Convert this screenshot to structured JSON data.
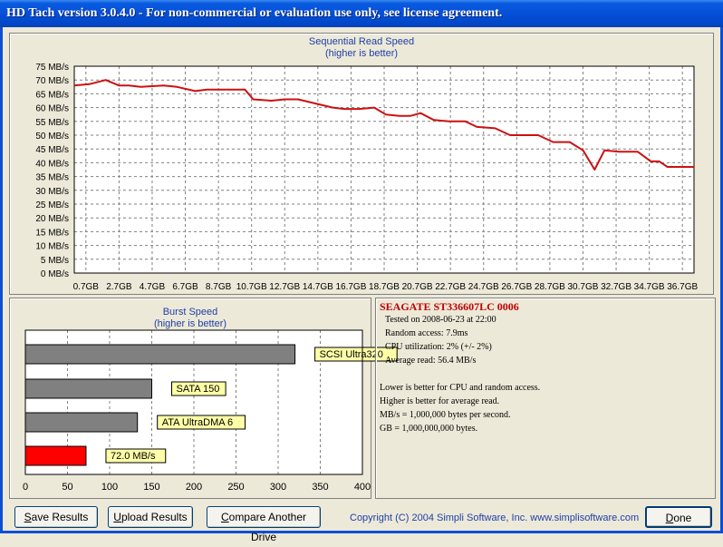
{
  "window": {
    "title": "HD Tach version 3.0.4.0  - For non-commercial or evaluation use only, see license agreement."
  },
  "sequential": {
    "title": "Sequential Read Speed",
    "subtitle": "(higher is better)"
  },
  "burst": {
    "title": "Burst Speed",
    "subtitle": "(higher is better)"
  },
  "chart_data": [
    {
      "type": "line",
      "title": "Sequential Read Speed",
      "subtitle": "(higher is better)",
      "ylim": [
        0,
        75
      ],
      "yticks": [
        0,
        5,
        10,
        15,
        20,
        25,
        30,
        35,
        40,
        45,
        50,
        55,
        60,
        65,
        70,
        75
      ],
      "ytick_labels": [
        "0 MB/s",
        "5 MB/s",
        "10 MB/s",
        "15 MB/s",
        "20 MB/s",
        "25 MB/s",
        "30 MB/s",
        "35 MB/s",
        "40 MB/s",
        "45 MB/s",
        "50 MB/s",
        "55 MB/s",
        "60 MB/s",
        "65 MB/s",
        "70 MB/s",
        "75 MB/s"
      ],
      "xlim": [
        0,
        37.4
      ],
      "xticks": [
        0.7,
        2.7,
        4.7,
        6.7,
        8.7,
        10.7,
        12.7,
        14.7,
        16.7,
        18.7,
        20.7,
        22.7,
        24.7,
        26.7,
        28.7,
        30.7,
        32.7,
        34.7,
        36.7
      ],
      "xtick_labels": [
        "0.7GB",
        "2.7GB",
        "4.7GB",
        "6.7GB",
        "8.7GB",
        "10.7GB",
        "12.7GB",
        "14.7GB",
        "16.7GB",
        "18.7GB",
        "20.7GB",
        "22.7GB",
        "24.7GB",
        "26.7GB",
        "28.7GB",
        "30.7GB",
        "32.7GB",
        "34.7GB",
        "36.7GB"
      ],
      "grid": true,
      "series": [
        {
          "color": "#CC1111",
          "x": [
            0,
            0.9,
            1.9,
            2.7,
            3.3,
            4.0,
            5.4,
            6.2,
            7.3,
            8.0,
            10.3,
            10.8,
            11.9,
            12.7,
            13.5,
            15.6,
            16.3,
            17.2,
            18.1,
            18.8,
            19.6,
            20.3,
            20.9,
            21.7,
            22.6,
            23.6,
            24.3,
            25.4,
            26.3,
            28.0,
            28.9,
            29.9,
            30.7,
            31.4,
            32.0,
            32.9,
            34.0,
            34.8,
            35.3,
            35.8,
            36.3,
            37.4
          ],
          "y": [
            68,
            68.5,
            70,
            68,
            68,
            67.5,
            68,
            67.5,
            66,
            66.5,
            66.5,
            63,
            62.5,
            63,
            63,
            60,
            59.5,
            59.5,
            60,
            57.5,
            57,
            57,
            58,
            55.5,
            55,
            55,
            53,
            52.5,
            50,
            50,
            47.5,
            47.5,
            44.5,
            37.5,
            44.5,
            44,
            44,
            40.5,
            40.5,
            38.5,
            38.5,
            38.5
          ]
        }
      ]
    },
    {
      "type": "bar",
      "orientation": "horizontal",
      "title": "Burst Speed",
      "subtitle": "(higher is better)",
      "xlim": [
        0,
        400
      ],
      "xticks": [
        0,
        50,
        100,
        150,
        200,
        250,
        300,
        350,
        400
      ],
      "xtick_labels": [
        "0",
        "50",
        "100",
        "150",
        "200",
        "250",
        "300",
        "350",
        "400"
      ],
      "grid": true,
      "categories": [
        "SCSI Ultra320",
        "SATA 150",
        "ATA UltraDMA 6",
        "72.0 MB/s"
      ],
      "values": [
        320,
        150,
        133,
        72
      ],
      "colors": [
        "#808080",
        "#808080",
        "#808080",
        "#FF0000"
      ]
    }
  ],
  "info": {
    "drive_name": "SEAGATE ST336607LC 0006",
    "tested_on": "Tested on 2008-06-23 at 22:00",
    "random_access": "Random access: 7.9ms",
    "cpu": "CPU utilization: 2% (+/- 2%)",
    "average_read": "Average read: 56.4 MB/s",
    "note1": "Lower is better for CPU and random access.",
    "note2": "Higher is better for average read.",
    "note3": "MB/s = 1,000,000 bytes per second.",
    "note4": "GB = 1,000,000,000 bytes."
  },
  "buttons": {
    "save_first": "S",
    "save_rest": "ave Results",
    "upload_first": "U",
    "upload_rest": "pload Results",
    "compare_first": "C",
    "compare_rest": "ompare Another Drive",
    "done_first": "D",
    "done_rest": "one"
  },
  "footer": {
    "copyright": "Copyright (C) 2004 Simpli Software, Inc. www.simplisoftware.com"
  }
}
